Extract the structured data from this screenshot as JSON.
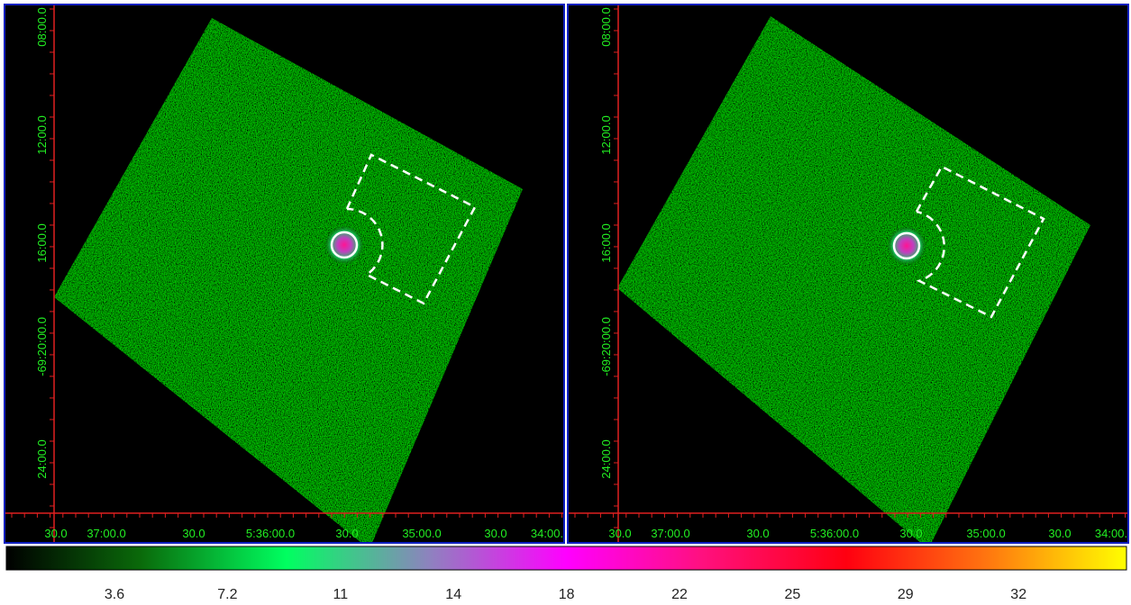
{
  "panels": [
    {
      "x_labels": [
        "30.0",
        "37:00.0",
        "30.0",
        "5:36:00.0",
        "30.0",
        "35:00.0",
        "30.0",
        "34:00."
      ],
      "y_labels": [
        "08:00.0",
        "12:00.0",
        "16:00.0",
        "-69:20:00.0",
        "24:00.0"
      ]
    },
    {
      "x_labels": [
        "30.0",
        "37:00.0",
        "30.0",
        "5:36:00.0",
        "30.0",
        "35:00.0",
        "30.0",
        "34:00."
      ],
      "y_labels": [
        "08:00.0",
        "12:00.0",
        "16:00.0",
        "-69:20:00.0",
        "24:00.0"
      ]
    }
  ],
  "colorbar": {
    "labels": [
      "3.6",
      "7.2",
      "11",
      "14",
      "18",
      "22",
      "25",
      "29",
      "32"
    ]
  }
}
